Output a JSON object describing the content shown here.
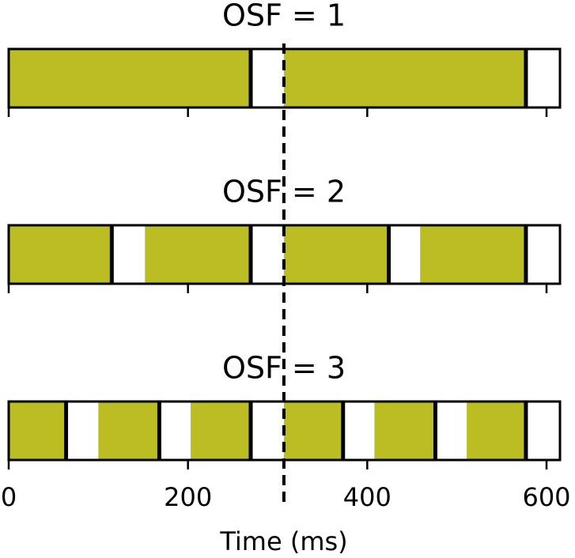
{
  "chart_data": {
    "type": "timeline",
    "xlabel": "Time (ms)",
    "xlim": [
      0,
      615
    ],
    "xticks": [
      0,
      200,
      400,
      600
    ],
    "marker": 307,
    "color": "#bcbd22",
    "panels": [
      {
        "title": "OSF = 1",
        "segments": [
          {
            "start": 0,
            "end": 270
          },
          {
            "start": 307,
            "end": 577
          }
        ]
      },
      {
        "title": "OSF = 2",
        "segments": [
          {
            "start": 0,
            "end": 115
          },
          {
            "start": 152,
            "end": 270
          },
          {
            "start": 307,
            "end": 424
          },
          {
            "start": 459,
            "end": 577
          }
        ]
      },
      {
        "title": "OSF = 3",
        "segments": [
          {
            "start": 0,
            "end": 64
          },
          {
            "start": 100,
            "end": 168
          },
          {
            "start": 203,
            "end": 270
          },
          {
            "start": 307,
            "end": 373
          },
          {
            "start": 408,
            "end": 476
          },
          {
            "start": 511,
            "end": 577
          }
        ]
      }
    ]
  }
}
